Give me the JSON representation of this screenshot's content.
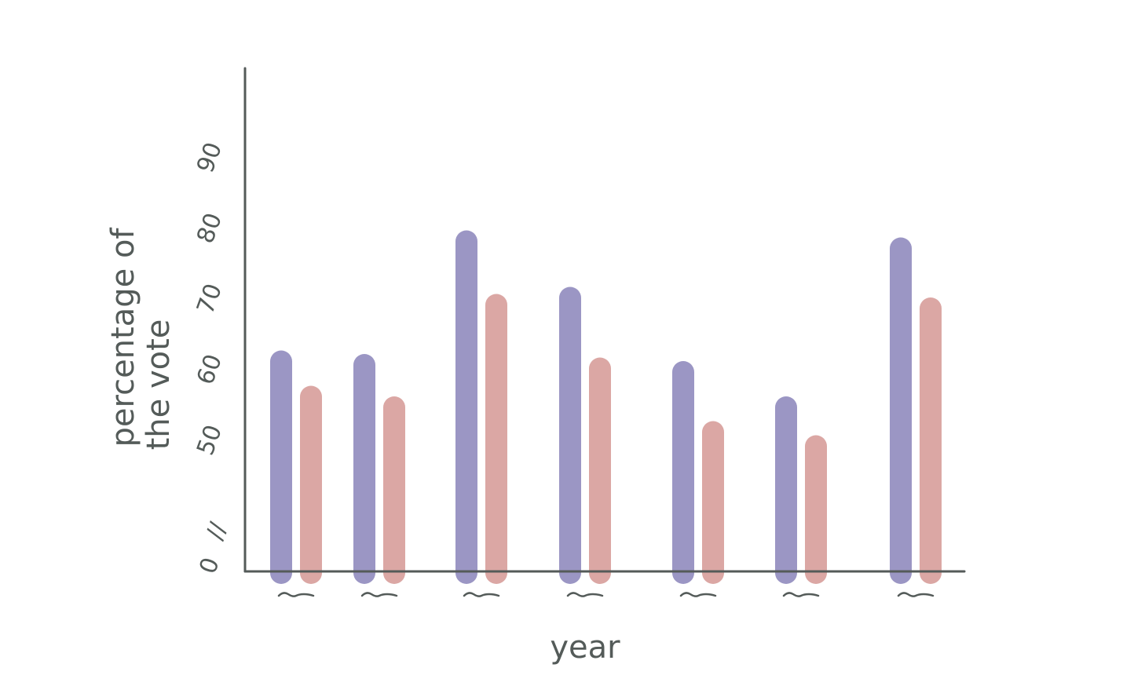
{
  "chart_data": {
    "type": "bar",
    "xlabel": "year",
    "ylabel_lines": [
      "percentage of",
      "the vote"
    ],
    "y_ticks": [
      {
        "value": 0,
        "label": "0"
      },
      {
        "value": 50,
        "label": "50"
      },
      {
        "value": 60,
        "label": "60"
      },
      {
        "value": 70,
        "label": "70"
      },
      {
        "value": 80,
        "label": "80"
      },
      {
        "value": 90,
        "label": "90"
      }
    ],
    "y_break_label": "//",
    "y_break": [
      0,
      45
    ],
    "ylim": [
      45,
      100
    ],
    "grid": false,
    "legend": false,
    "categories": [
      "",
      "",
      "",
      "",
      "",
      "",
      ""
    ],
    "series": [
      {
        "color": "#9b96c4",
        "values": [
          63.5,
          63,
          80.5,
          72.5,
          62,
          57,
          79.5
        ]
      },
      {
        "color": "#dba7a4",
        "values": [
          58.5,
          57,
          71.5,
          62.5,
          53.5,
          51.5,
          71
        ]
      }
    ]
  }
}
